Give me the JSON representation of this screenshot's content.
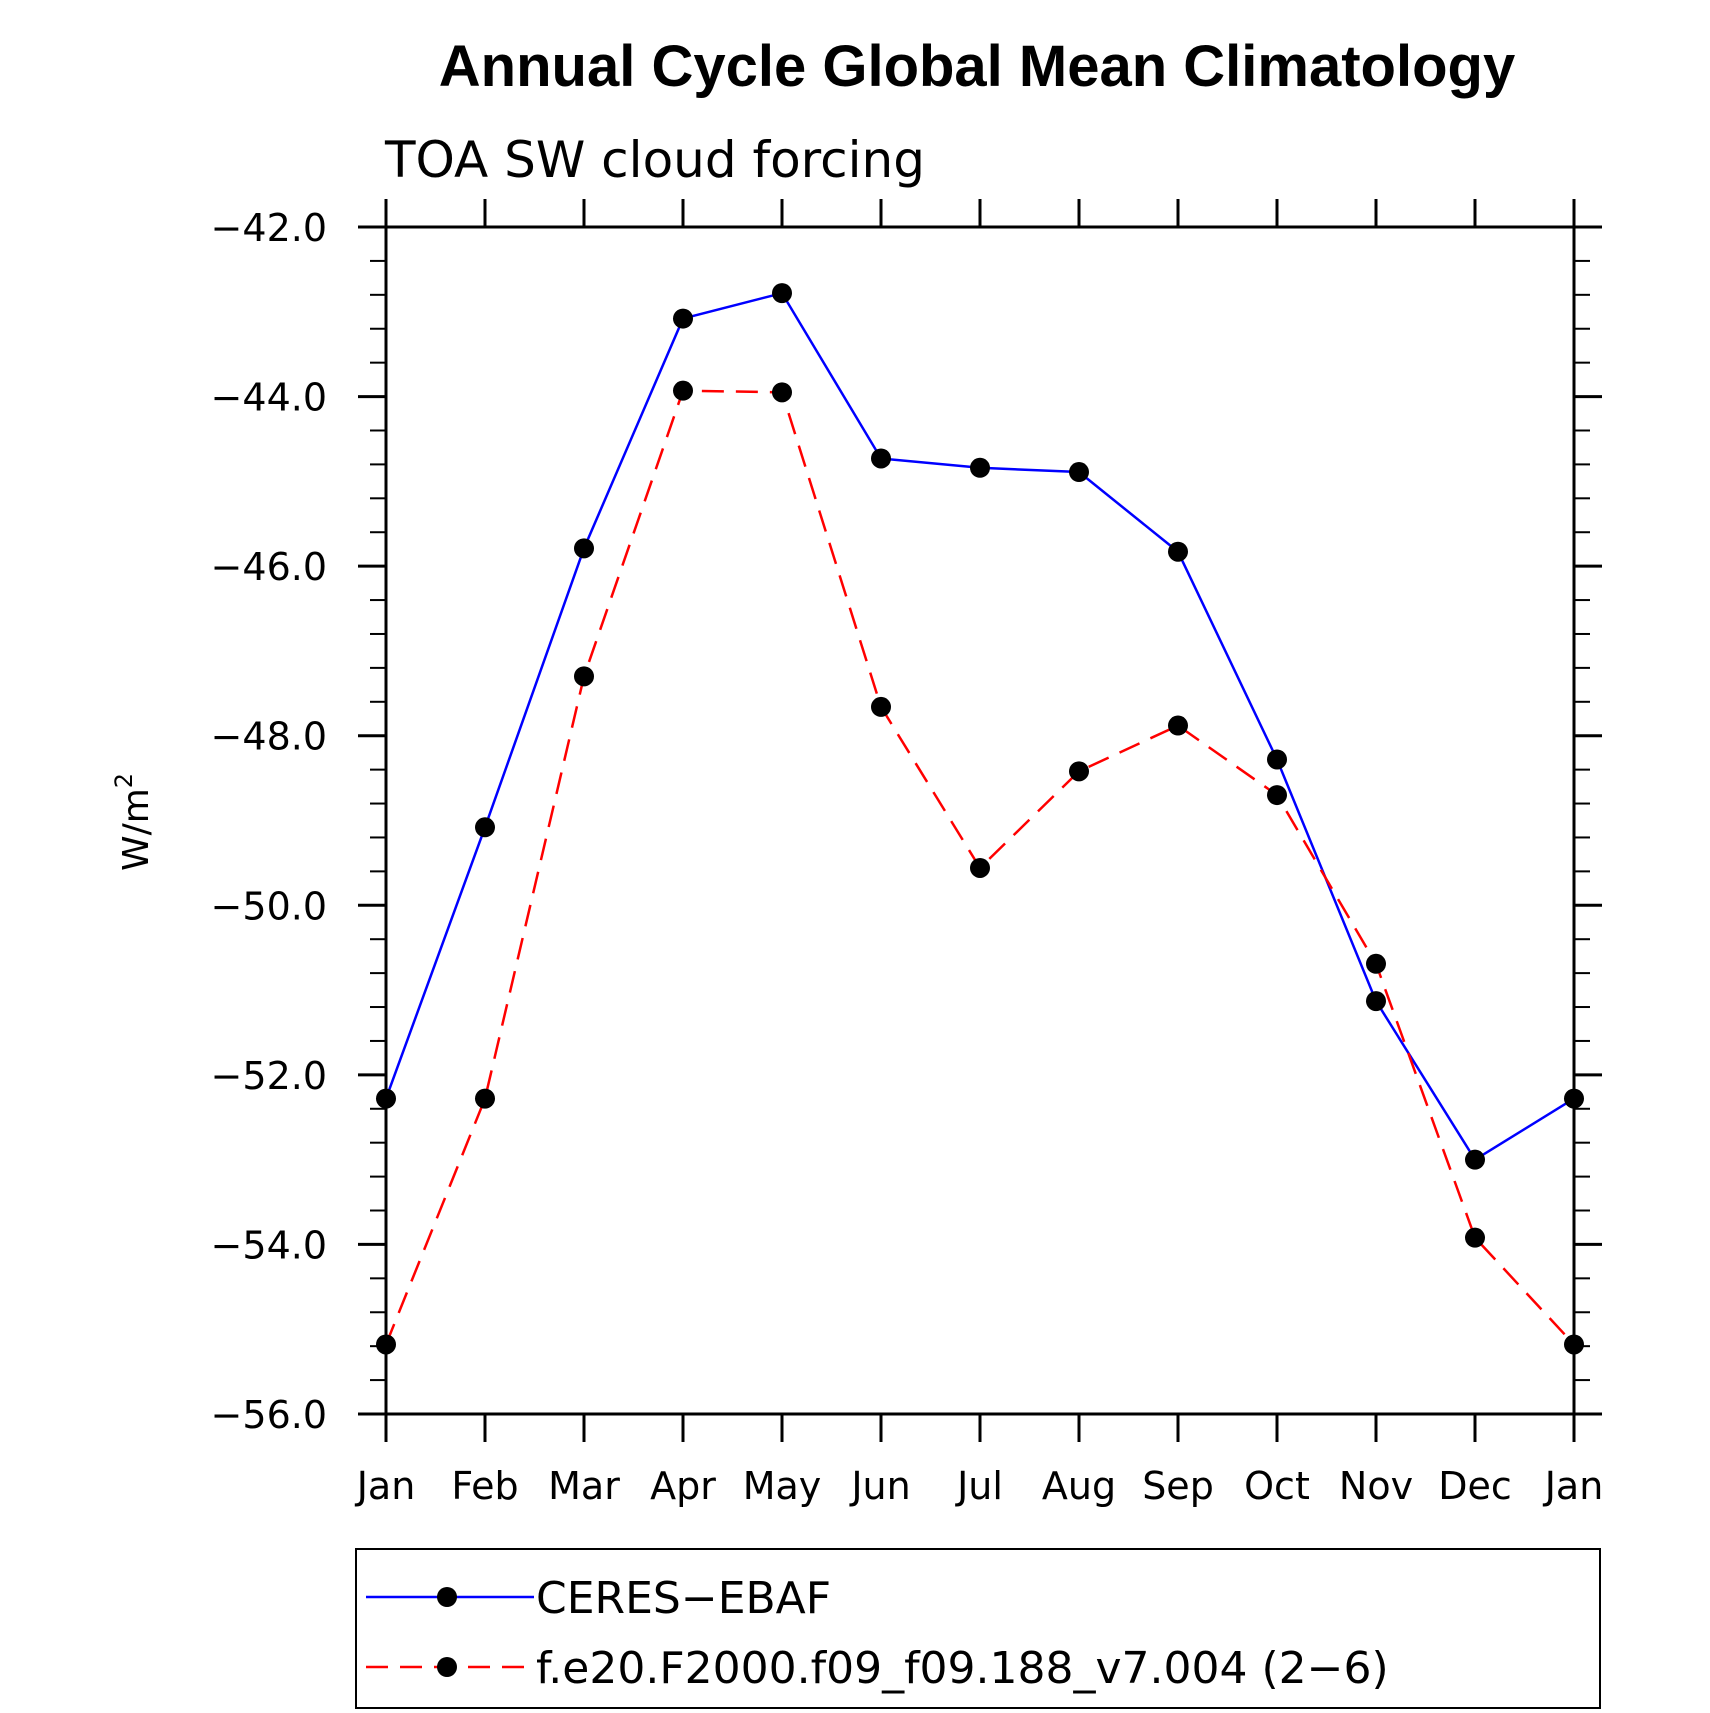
{
  "chart_data": {
    "type": "line",
    "title": "Annual Cycle Global Mean Climatology",
    "subtitle": "TOA SW cloud forcing",
    "xlabel": "",
    "ylabel": "W/m",
    "ylabel_superscript": "2",
    "categories": [
      "Jan",
      "Feb",
      "Mar",
      "Apr",
      "May",
      "Jun",
      "Jul",
      "Aug",
      "Sep",
      "Oct",
      "Nov",
      "Dec",
      "Jan"
    ],
    "ylim": [
      -56.0,
      -42.0
    ],
    "yticks": [
      -42.0,
      -44.0,
      -46.0,
      -48.0,
      -50.0,
      -52.0,
      -54.0,
      -56.0
    ],
    "ytick_labels": [
      "−42.0",
      "−44.0",
      "−46.0",
      "−48.0",
      "−50.0",
      "−52.0",
      "−54.0",
      "−56.0"
    ],
    "grid": false,
    "legend_position": "bottom",
    "series": [
      {
        "name": "CERES−EBAF",
        "color": "#0000ff",
        "dash": "solid",
        "marker": "filled-circle",
        "values": [
          -52.28,
          -49.08,
          -45.79,
          -43.08,
          -42.78,
          -44.73,
          -44.84,
          -44.89,
          -45.83,
          -48.28,
          -51.13,
          -53.0,
          -52.28
        ]
      },
      {
        "name": "f.e20.F2000.f09_f09.188_v7.004 (2−6)",
        "color": "#ff0000",
        "dash": "dashed",
        "marker": "filled-circle",
        "values": [
          -55.18,
          -52.28,
          -47.3,
          -43.93,
          -43.95,
          -47.66,
          -49.56,
          -48.42,
          -47.88,
          -48.7,
          -50.69,
          -53.92,
          -55.18
        ]
      }
    ]
  }
}
